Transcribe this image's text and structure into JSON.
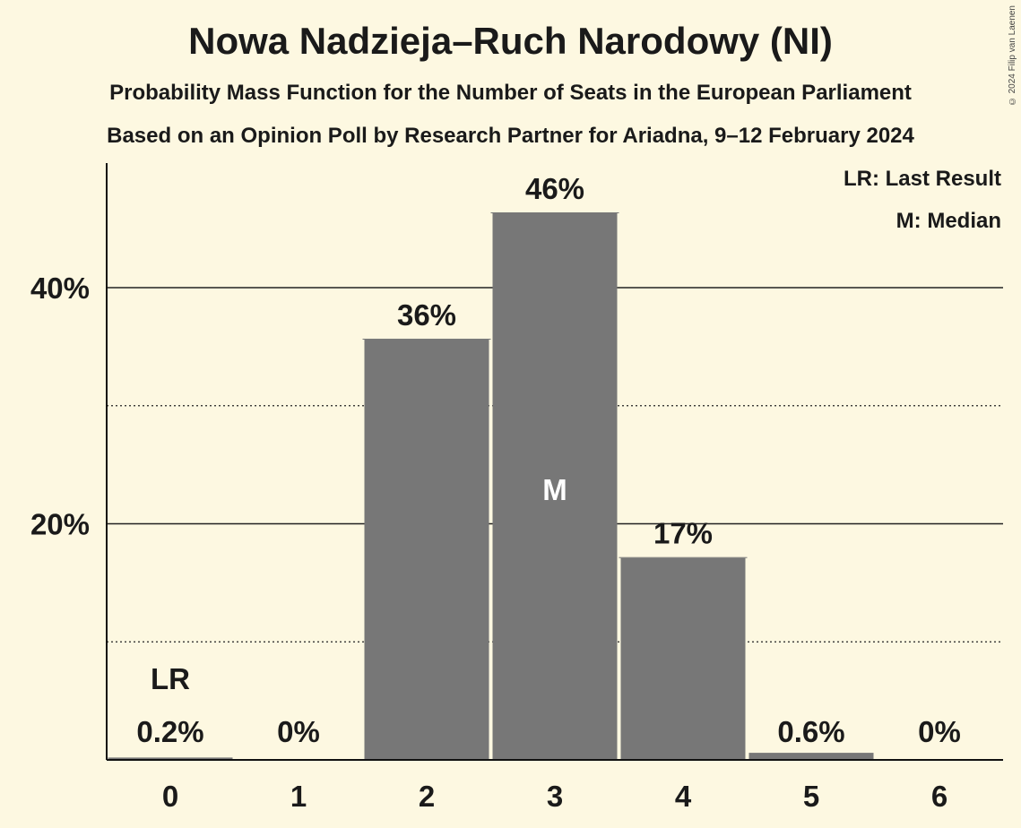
{
  "header": {
    "title": "Nowa Nadzieja–Ruch Narodowy (NI)",
    "subtitle": "Probability Mass Function for the Number of Seats in the European Parliament",
    "source": "Based on an Opinion Poll by Research Partner for Ariadna, 9–12 February 2024",
    "copyright": "© 2024 Filip van Laenen"
  },
  "legend": {
    "last_result": "LR: Last Result",
    "median": "M: Median"
  },
  "chart_data": {
    "type": "bar",
    "title": "Nowa Nadzieja–Ruch Narodowy (NI)",
    "categories": [
      "0",
      "1",
      "2",
      "3",
      "4",
      "5",
      "6"
    ],
    "values": [
      0.2,
      0,
      35.6,
      46.3,
      17.1,
      0.6,
      0
    ],
    "labels": [
      "0.2%",
      "0%",
      "36%",
      "46%",
      "17%",
      "0.6%",
      "0%"
    ],
    "y_ticks": [
      20,
      40
    ],
    "y_tick_labels": [
      "20%",
      "40%"
    ],
    "y_minor_gridlines": [
      10,
      30
    ],
    "ylim": [
      0,
      50
    ],
    "last_result_index": 0,
    "last_result_marker": "LR",
    "median_index": 3,
    "median_marker": "M",
    "bar_color": "#777777",
    "legend_position": "top-right"
  }
}
